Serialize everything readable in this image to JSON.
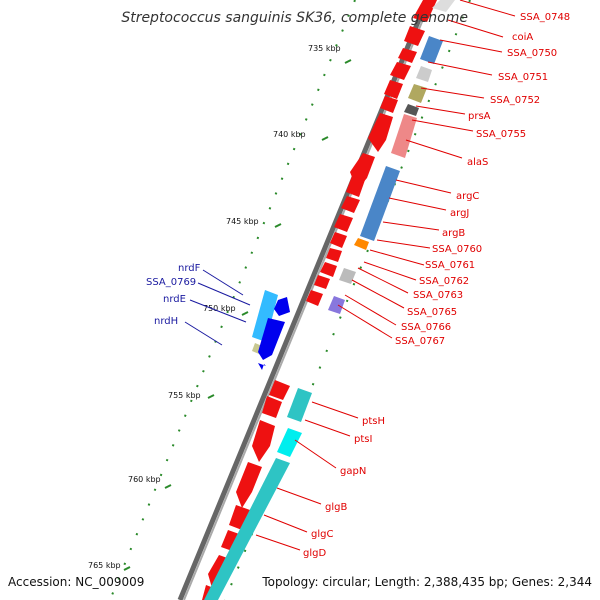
{
  "title": "Streptococcus sanguinis SK36, complete genome",
  "accession": "Accession: NC_009009",
  "summary": "Topology: circular; Length: 2,388,435 bp; Genes: 2,344",
  "colors": {
    "forward_gene": "#ff0000",
    "reverse_gene": "#0000ee",
    "right_label": "#e00000",
    "left_label": "#1a1aa0",
    "backbone": "#777777",
    "tick": "#2a8a2a"
  },
  "ruler": [
    "735 kbp",
    "740 kbp",
    "745 kbp",
    "750 kbp",
    "755 kbp",
    "760 kbp",
    "765 kbp"
  ],
  "right_genes": [
    "SSA_0748",
    "coiA",
    "SSA_0750",
    "SSA_0751",
    "SSA_0752",
    "prsA",
    "SSA_0755",
    "alaS",
    "argC",
    "argJ",
    "argB",
    "SSA_0760",
    "SSA_0761",
    "SSA_0762",
    "SSA_0763",
    "SSA_0765",
    "SSA_0766",
    "SSA_0767",
    "ptsH",
    "ptsI",
    "gapN",
    "glgB",
    "glgC",
    "glgD"
  ],
  "left_genes": [
    "nrdF",
    "SSA_0769",
    "nrdE",
    "nrdH"
  ]
}
